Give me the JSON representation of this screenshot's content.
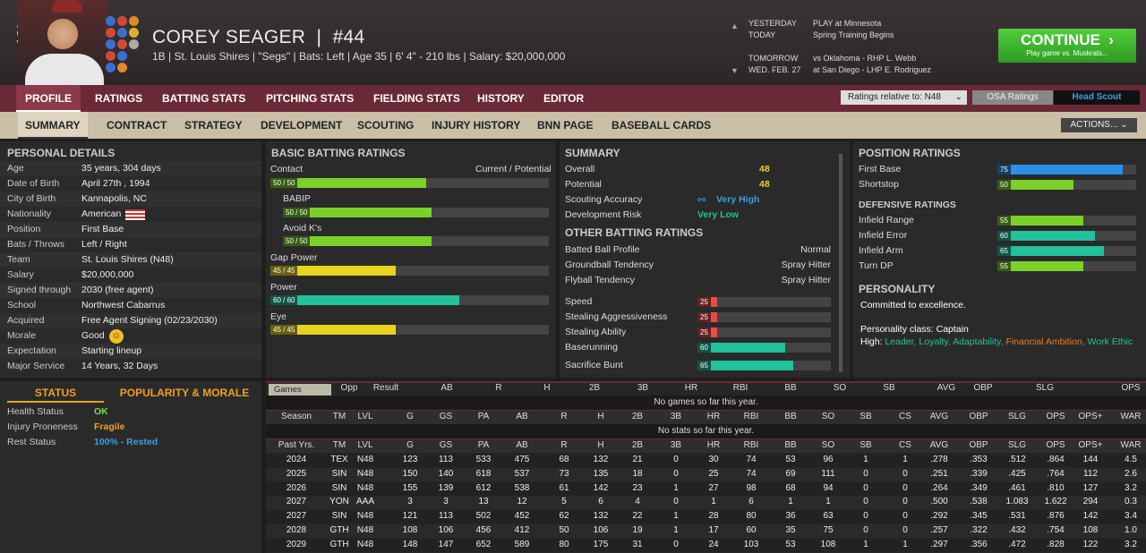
{
  "header": {
    "name": "COREY SEAGER",
    "number": "#44",
    "info": "1B | St. Louis Shires | \"Segs\" | Bats: Left | Age 35 | 6' 4\" - 210 lbs | Salary: $20,000,000",
    "schedule": [
      {
        "label": "YESTERDAY",
        "value": "PLAY at Minnesota"
      },
      {
        "label": "TODAY",
        "value": "Spring Training Begins"
      },
      {
        "label": "TOMORROW",
        "value": "vs Oklahoma - RHP L. Webb"
      },
      {
        "label": "WED. FEB. 27",
        "value": "at San Diego - LHP E. Rodriguez"
      }
    ],
    "continue": "CONTINUE",
    "continue_sub": "Play game vs. Muskrats..."
  },
  "nav1": [
    "PROFILE",
    "RATINGS",
    "BATTING STATS",
    "PITCHING STATS",
    "FIELDING STATS",
    "HISTORY",
    "EDITOR"
  ],
  "ratings_select": "Ratings relative to: N48",
  "osa_button": "OSA Ratings",
  "head_scout": "Head Scout",
  "nav2": [
    "SUMMARY",
    "CONTRACT",
    "STRATEGY",
    "DEVELOPMENT",
    "SCOUTING",
    "INJURY HISTORY",
    "BNN PAGE",
    "BASEBALL CARDS"
  ],
  "actions": "ACTIONS...",
  "personal": {
    "title": "PERSONAL DETAILS",
    "rows": [
      [
        "Age",
        "35 years, 304 days"
      ],
      [
        "Date of Birth",
        "April 27th , 1994"
      ],
      [
        "City of Birth",
        "Kannapolis, NC"
      ],
      [
        "Nationality",
        "American"
      ],
      [
        "Position",
        "First Base"
      ],
      [
        "Bats / Throws",
        "Left / Right"
      ],
      [
        "Team",
        "St. Louis Shires (N48)"
      ],
      [
        "Salary",
        "$20,000,000"
      ],
      [
        "Signed through",
        "2030 (free agent)"
      ],
      [
        "School",
        "Northwest Cabarrus"
      ],
      [
        "Acquired",
        "Free Agent Signing (02/23/2030)"
      ],
      [
        "Morale",
        "Good"
      ],
      [
        "Expectation",
        "Starting lineup"
      ],
      [
        "Major Service",
        "14 Years, 32 Days"
      ]
    ]
  },
  "status": {
    "tab1": "STATUS",
    "tab2": "POPULARITY & MORALE",
    "rows": [
      [
        "Health Status",
        "OK",
        "#7be04f"
      ],
      [
        "Injury Proneness",
        "Fragile",
        "#f0a020"
      ],
      [
        "Rest Status",
        "100% - Rested",
        "#3aa0e0"
      ]
    ]
  },
  "batting": {
    "title": "BASIC BATTING RATINGS",
    "cp": "Current / Potential",
    "rows": [
      {
        "label": "Contact",
        "val": "50 / 50",
        "pct": 0.56,
        "color": "#7bd12a"
      },
      {
        "label": "BABIP",
        "val": "50 / 50",
        "pct": 0.56,
        "color": "#7bd12a"
      },
      {
        "label": "Avoid K's",
        "val": "50 / 50",
        "pct": 0.56,
        "color": "#7bd12a"
      },
      {
        "label": "Gap Power",
        "val": "45 / 45",
        "pct": 0.45,
        "color": "#e8d41e"
      },
      {
        "label": "Power",
        "val": "60 / 60",
        "pct": 0.68,
        "color": "#22c29a"
      },
      {
        "label": "Eye",
        "val": "45 / 45",
        "pct": 0.45,
        "color": "#e8d41e"
      }
    ]
  },
  "summary": {
    "title": "SUMMARY",
    "rows": [
      [
        "Overall",
        "48",
        "#e8d41e"
      ],
      [
        "Potential",
        "48",
        "#e8d41e"
      ],
      [
        "Scouting Accuracy",
        "Very High",
        "#3aa0e0"
      ],
      [
        "Development Risk",
        "Very Low",
        "#22c29a"
      ]
    ],
    "other_title": "OTHER BATTING RATINGS",
    "other": [
      [
        "Batted Ball Profile",
        "Normal"
      ],
      [
        "Groundball Tendency",
        "Spray Hitter"
      ],
      [
        "Flyball Tendency",
        "Spray Hitter"
      ]
    ],
    "speed": [
      {
        "label": "Speed",
        "val": "25",
        "pct": 0.15,
        "color": "#e84a4a"
      },
      {
        "label": "Stealing Aggressiveness",
        "val": "25",
        "pct": 0.15,
        "color": "#e84a4a"
      },
      {
        "label": "Stealing Ability",
        "val": "25",
        "pct": 0.15,
        "color": "#e84a4a"
      },
      {
        "label": "Baserunning",
        "val": "60",
        "pct": 0.66,
        "color": "#22c29a"
      },
      {
        "label": "Sacrifice Bunt",
        "val": "65",
        "pct": 0.72,
        "color": "#22c29a"
      }
    ]
  },
  "position": {
    "title": "POSITION RATINGS",
    "rows": [
      {
        "label": "First Base",
        "val": "75",
        "pct": 0.9,
        "color": "#2a90e8"
      },
      {
        "label": "Shortstop",
        "val": "50",
        "pct": 0.55,
        "color": "#7bd12a"
      }
    ],
    "def_title": "DEFENSIVE RATINGS",
    "def": [
      {
        "label": "Infield Range",
        "val": "55",
        "pct": 0.62,
        "color": "#7bd12a"
      },
      {
        "label": "Infield Error",
        "val": "60",
        "pct": 0.7,
        "color": "#22c29a"
      },
      {
        "label": "Infield Arm",
        "val": "65",
        "pct": 0.77,
        "color": "#22c29a"
      },
      {
        "label": "Turn DP",
        "val": "55",
        "pct": 0.62,
        "color": "#7bd12a"
      }
    ]
  },
  "personality": {
    "title": "PERSONALITY",
    "line": "Committed to excellence.",
    "class": "Personality class: Captain",
    "high_label": "High:",
    "traits": [
      [
        "Leader,",
        "#22c29a"
      ],
      [
        "Loyalty,",
        "#22c29a"
      ],
      [
        "Adaptability,",
        "#22c29a"
      ],
      [
        "Financial Ambition,",
        "#f07a20"
      ],
      [
        "Work Ethic",
        "#22c29a"
      ]
    ]
  },
  "games": {
    "select": "Games",
    "headers": [
      "Opp",
      "Result",
      "AB",
      "R",
      "H",
      "2B",
      "3B",
      "HR",
      "RBI",
      "BB",
      "SO",
      "SB",
      "AVG",
      "OBP",
      "SLG",
      "OPS"
    ],
    "empty": "No games so far this year."
  },
  "season": {
    "headers": [
      "Season",
      "TM",
      "LVL",
      "G",
      "GS",
      "PA",
      "AB",
      "R",
      "H",
      "2B",
      "3B",
      "HR",
      "RBI",
      "BB",
      "SO",
      "SB",
      "CS",
      "AVG",
      "OBP",
      "SLG",
      "OPS",
      "OPS+",
      "WAR"
    ],
    "empty": "No stats so far this year."
  },
  "past": {
    "headers": [
      "Past Yrs.",
      "TM",
      "LVL",
      "G",
      "GS",
      "PA",
      "AB",
      "R",
      "H",
      "2B",
      "3B",
      "HR",
      "RBI",
      "BB",
      "SO",
      "SB",
      "CS",
      "AVG",
      "OBP",
      "SLG",
      "OPS",
      "OPS+",
      "WAR"
    ],
    "rows": [
      [
        "2024",
        "TEX",
        "N48",
        "123",
        "113",
        "533",
        "475",
        "68",
        "132",
        "21",
        "0",
        "30",
        "74",
        "53",
        "96",
        "1",
        "1",
        ".278",
        ".353",
        ".512",
        ".864",
        "144",
        "4.5"
      ],
      [
        "2025",
        "SIN",
        "N48",
        "150",
        "140",
        "618",
        "537",
        "73",
        "135",
        "18",
        "0",
        "25",
        "74",
        "69",
        "111",
        "0",
        "0",
        ".251",
        ".339",
        ".425",
        ".764",
        "112",
        "2.6"
      ],
      [
        "2026",
        "SIN",
        "N48",
        "155",
        "139",
        "612",
        "538",
        "61",
        "142",
        "23",
        "1",
        "27",
        "98",
        "68",
        "94",
        "0",
        "0",
        ".264",
        ".349",
        ".461",
        ".810",
        "127",
        "3.2"
      ],
      [
        "2027",
        "YON",
        "AAA",
        "3",
        "3",
        "13",
        "12",
        "5",
        "6",
        "4",
        "0",
        "1",
        "6",
        "1",
        "1",
        "0",
        "0",
        ".500",
        ".538",
        "1.083",
        "1.622",
        "294",
        "0.3"
      ],
      [
        "2027",
        "SIN",
        "N48",
        "121",
        "113",
        "502",
        "452",
        "62",
        "132",
        "22",
        "1",
        "28",
        "80",
        "36",
        "63",
        "0",
        "0",
        ".292",
        ".345",
        ".531",
        ".876",
        "142",
        "3.4"
      ],
      [
        "2028",
        "GTH",
        "N48",
        "108",
        "106",
        "456",
        "412",
        "50",
        "106",
        "19",
        "1",
        "17",
        "60",
        "35",
        "75",
        "0",
        "0",
        ".257",
        ".322",
        ".432",
        ".754",
        "108",
        "1.0"
      ],
      [
        "2029",
        "GTH",
        "N48",
        "148",
        "147",
        "652",
        "589",
        "80",
        "175",
        "31",
        "0",
        "24",
        "103",
        "53",
        "108",
        "1",
        "1",
        ".297",
        ".356",
        ".472",
        ".828",
        "122",
        "3.2"
      ]
    ]
  }
}
